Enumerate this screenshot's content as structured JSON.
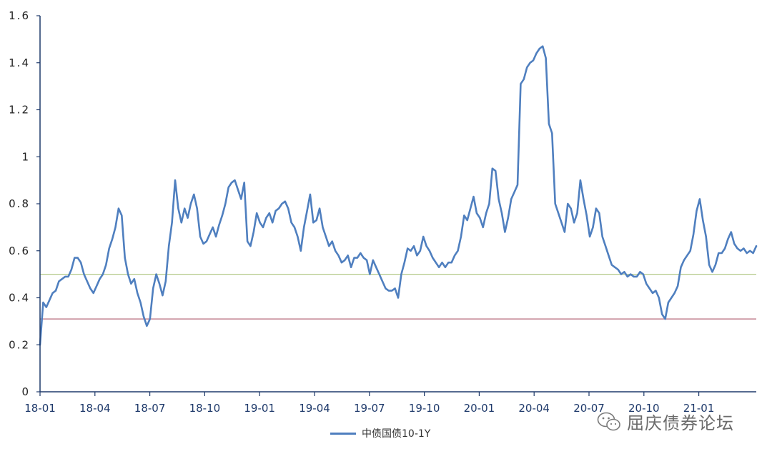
{
  "chart_data": {
    "type": "line",
    "title": "",
    "xlabel": "",
    "ylabel": "",
    "ylim": [
      0,
      1.6
    ],
    "yticks": [
      "0",
      "0.2",
      "0.4",
      "0.6",
      "0.8",
      "1",
      "1.2",
      "1.4",
      "1.6"
    ],
    "xticks": [
      "18-01",
      "18-04",
      "18-07",
      "18-10",
      "19-01",
      "19-04",
      "19-07",
      "19-10",
      "20-01",
      "20-04",
      "20-07",
      "20-10",
      "21-01"
    ],
    "legend_position": "bottom-center",
    "grid": false,
    "series": [
      {
        "name": "中债国债10-1Y",
        "color": "#4f7fbf",
        "values": [
          0.2,
          0.38,
          0.36,
          0.39,
          0.42,
          0.43,
          0.47,
          0.48,
          0.49,
          0.49,
          0.52,
          0.57,
          0.57,
          0.55,
          0.5,
          0.47,
          0.44,
          0.42,
          0.45,
          0.48,
          0.5,
          0.54,
          0.61,
          0.65,
          0.7,
          0.78,
          0.75,
          0.57,
          0.5,
          0.46,
          0.48,
          0.42,
          0.38,
          0.32,
          0.28,
          0.31,
          0.44,
          0.5,
          0.46,
          0.41,
          0.47,
          0.62,
          0.72,
          0.9,
          0.78,
          0.72,
          0.78,
          0.74,
          0.8,
          0.84,
          0.78,
          0.66,
          0.63,
          0.64,
          0.67,
          0.7,
          0.66,
          0.71,
          0.75,
          0.8,
          0.87,
          0.89,
          0.9,
          0.86,
          0.82,
          0.89,
          0.64,
          0.62,
          0.68,
          0.76,
          0.72,
          0.7,
          0.74,
          0.76,
          0.72,
          0.77,
          0.78,
          0.8,
          0.81,
          0.78,
          0.72,
          0.7,
          0.66,
          0.6,
          0.7,
          0.77,
          0.84,
          0.72,
          0.73,
          0.78,
          0.7,
          0.66,
          0.62,
          0.64,
          0.6,
          0.58,
          0.55,
          0.56,
          0.58,
          0.53,
          0.57,
          0.57,
          0.59,
          0.57,
          0.56,
          0.5,
          0.56,
          0.53,
          0.5,
          0.47,
          0.44,
          0.43,
          0.43,
          0.44,
          0.4,
          0.5,
          0.55,
          0.61,
          0.6,
          0.62,
          0.58,
          0.6,
          0.66,
          0.62,
          0.6,
          0.57,
          0.55,
          0.53,
          0.55,
          0.53,
          0.55,
          0.55,
          0.58,
          0.6,
          0.66,
          0.75,
          0.73,
          0.78,
          0.83,
          0.76,
          0.74,
          0.7,
          0.76,
          0.8,
          0.95,
          0.94,
          0.82,
          0.76,
          0.68,
          0.74,
          0.82,
          0.85,
          0.88,
          1.31,
          1.33,
          1.38,
          1.4,
          1.41,
          1.44,
          1.46,
          1.47,
          1.42,
          1.14,
          1.1,
          0.8,
          0.76,
          0.72,
          0.68,
          0.8,
          0.78,
          0.72,
          0.76,
          0.9,
          0.82,
          0.75,
          0.66,
          0.7,
          0.78,
          0.76,
          0.66,
          0.62,
          0.58,
          0.54,
          0.53,
          0.52,
          0.5,
          0.51,
          0.49,
          0.5,
          0.49,
          0.49,
          0.51,
          0.5,
          0.46,
          0.44,
          0.42,
          0.43,
          0.4,
          0.33,
          0.31,
          0.38,
          0.4,
          0.42,
          0.45,
          0.53,
          0.56,
          0.58,
          0.6,
          0.67,
          0.77,
          0.82,
          0.73,
          0.66,
          0.54,
          0.51,
          0.54,
          0.59,
          0.59,
          0.61,
          0.65,
          0.68,
          0.63,
          0.61,
          0.6,
          0.61,
          0.59,
          0.6,
          0.59,
          0.62
        ]
      }
    ],
    "reference_lines": [
      {
        "value": 0.5,
        "color": "#b5c98a"
      },
      {
        "value": 0.31,
        "color": "#b56a7a"
      }
    ]
  },
  "watermark": {
    "text": "屈庆债券论坛",
    "icon": "wechat-icon"
  }
}
